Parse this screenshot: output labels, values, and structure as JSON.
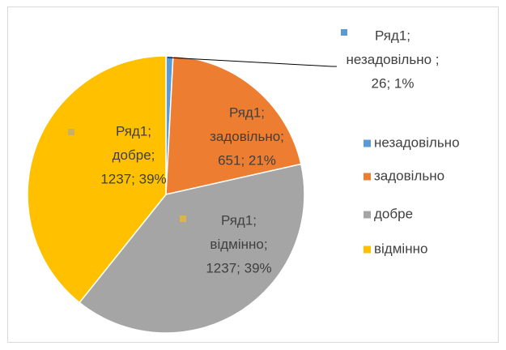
{
  "chart_data": {
    "type": "pie",
    "series_name": "Ряд1",
    "categories": [
      "незадовільно",
      "задовільно",
      "добре",
      "відмінно"
    ],
    "values": [
      26,
      651,
      1237,
      1237
    ],
    "value_labels": [
      [
        "Ряд1;",
        "незадовільно ;",
        "26; 1%"
      ],
      [
        "Ряд1;",
        "задовільно;",
        "651; 21%"
      ],
      [
        "Ряд1;",
        "добре;",
        "1237; 39%"
      ],
      [
        "Ряд1;",
        "відмінно;",
        "1237; 39%"
      ]
    ],
    "colors": [
      "#5b9bd5",
      "#ed7d31",
      "#a5a5a5",
      "#ffc000"
    ],
    "legend": "right"
  }
}
